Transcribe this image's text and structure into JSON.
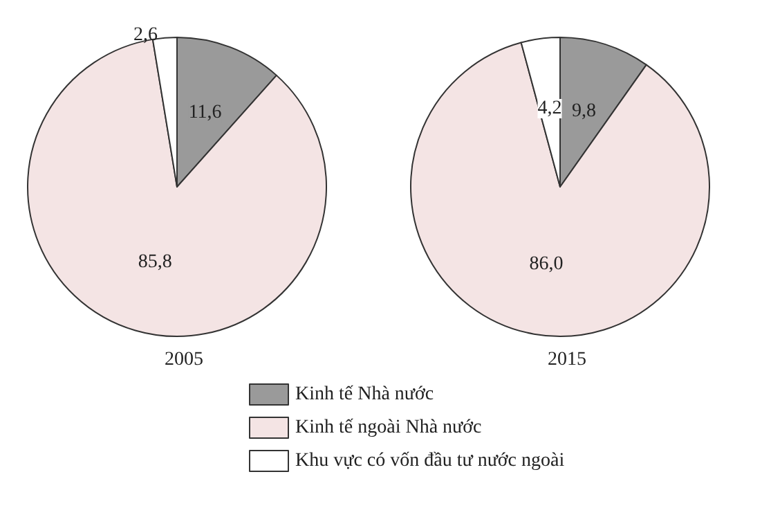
{
  "chart_data": {
    "type": "pie",
    "categories": [
      "Kinh tế Nhà nước",
      "Kinh tế ngoài Nhà nước",
      "Khu vực có vốn đầu tư nước ngoài"
    ],
    "colors": [
      "#9a9a9a",
      "#f4e4e4",
      "#ffffff"
    ],
    "legend": "bottom",
    "series": [
      {
        "name": "2005",
        "values": [
          11.6,
          85.8,
          2.6
        ],
        "value_labels": [
          "11,6",
          "85,8",
          "2,6"
        ]
      },
      {
        "name": "2015",
        "values": [
          9.8,
          86.0,
          4.2
        ],
        "value_labels": [
          "9,8",
          "86,0",
          "4,2"
        ]
      }
    ]
  }
}
